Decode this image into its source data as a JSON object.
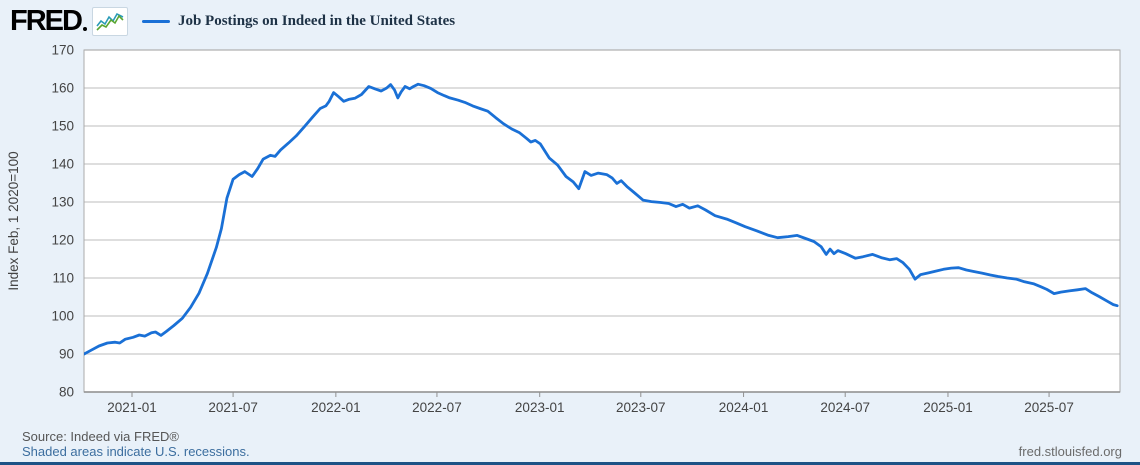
{
  "header": {
    "logo_text": "FRED",
    "legend_label": "Job Postings on Indeed in the United States"
  },
  "footer": {
    "source": "Source: Indeed via FRED®",
    "recessions_note": "Shaded areas indicate U.S. recessions.",
    "site": "fred.stlouisfed.org"
  },
  "colors": {
    "line": "#1a70d6",
    "page_bg": "#e9f1f9",
    "plot_bg": "#ffffff",
    "grid": "#c9c9c9",
    "border": "#ababab",
    "axis_bottom": "#909090",
    "tick_text": "#444444",
    "legend_text": "#1e3246",
    "link": "#3c6e9f",
    "bottom_bar": "#1c5286",
    "spark_teal": "#2a9bb7",
    "spark_green": "#5aa632"
  },
  "chart_data": {
    "type": "line",
    "title": "Job Postings on Indeed in the United States",
    "xlabel": "",
    "ylabel": "Index Feb, 1 2020=100",
    "ylim": [
      80,
      170
    ],
    "grid": true,
    "legend_position": "top-left",
    "y_ticks": [
      80,
      90,
      100,
      110,
      120,
      130,
      140,
      150,
      160,
      170
    ],
    "x_tick_labels": [
      "2021-01",
      "2021-07",
      "2022-01",
      "2022-07",
      "2023-01",
      "2023-07",
      "2024-01",
      "2024-07",
      "2025-01",
      "2025-07"
    ],
    "x_range": [
      "2020-10-06",
      "2025-11-05"
    ],
    "series": [
      {
        "name": "Job Postings on Indeed in the United States",
        "color": "#1a70d6",
        "points": [
          [
            "2020-10-06",
            89.9
          ],
          [
            "2020-10-20",
            91.0
          ],
          [
            "2020-11-03",
            92.1
          ],
          [
            "2020-11-18",
            92.9
          ],
          [
            "2020-12-02",
            93.1
          ],
          [
            "2020-12-10",
            92.9
          ],
          [
            "2020-12-20",
            93.9
          ],
          [
            "2021-01-03",
            94.4
          ],
          [
            "2021-01-14",
            95.0
          ],
          [
            "2021-01-24",
            94.7
          ],
          [
            "2021-02-05",
            95.6
          ],
          [
            "2021-02-12",
            95.8
          ],
          [
            "2021-02-22",
            94.9
          ],
          [
            "2021-03-03",
            95.9
          ],
          [
            "2021-03-17",
            97.5
          ],
          [
            "2021-04-01",
            99.4
          ],
          [
            "2021-04-16",
            102.3
          ],
          [
            "2021-05-01",
            106.0
          ],
          [
            "2021-05-16",
            111.2
          ],
          [
            "2021-06-01",
            118.0
          ],
          [
            "2021-06-10",
            123.0
          ],
          [
            "2021-06-20",
            131.0
          ],
          [
            "2021-07-01",
            136.0
          ],
          [
            "2021-07-12",
            137.2
          ],
          [
            "2021-07-22",
            138.0
          ],
          [
            "2021-08-04",
            136.7
          ],
          [
            "2021-08-14",
            138.8
          ],
          [
            "2021-08-24",
            141.3
          ],
          [
            "2021-09-06",
            142.3
          ],
          [
            "2021-09-14",
            142.0
          ],
          [
            "2021-09-24",
            143.7
          ],
          [
            "2021-10-08",
            145.5
          ],
          [
            "2021-10-22",
            147.4
          ],
          [
            "2021-11-06",
            149.9
          ],
          [
            "2021-11-20",
            152.3
          ],
          [
            "2021-12-04",
            154.6
          ],
          [
            "2021-12-14",
            155.3
          ],
          [
            "2021-12-20",
            156.5
          ],
          [
            "2021-12-28",
            158.8
          ],
          [
            "2022-01-06",
            157.7
          ],
          [
            "2022-01-15",
            156.5
          ],
          [
            "2022-01-24",
            157.0
          ],
          [
            "2022-02-04",
            157.3
          ],
          [
            "2022-02-16",
            158.3
          ],
          [
            "2022-03-01",
            160.4
          ],
          [
            "2022-03-13",
            159.7
          ],
          [
            "2022-03-23",
            159.2
          ],
          [
            "2022-04-02",
            160.0
          ],
          [
            "2022-04-09",
            160.9
          ],
          [
            "2022-04-16",
            159.5
          ],
          [
            "2022-04-22",
            157.4
          ],
          [
            "2022-04-28",
            159.0
          ],
          [
            "2022-05-05",
            160.4
          ],
          [
            "2022-05-13",
            159.8
          ],
          [
            "2022-05-20",
            160.4
          ],
          [
            "2022-05-28",
            161.0
          ],
          [
            "2022-06-08",
            160.6
          ],
          [
            "2022-06-20",
            159.9
          ],
          [
            "2022-07-02",
            158.8
          ],
          [
            "2022-07-14",
            158.0
          ],
          [
            "2022-07-24",
            157.4
          ],
          [
            "2022-08-08",
            156.8
          ],
          [
            "2022-08-20",
            156.2
          ],
          [
            "2022-09-03",
            155.3
          ],
          [
            "2022-09-16",
            154.6
          ],
          [
            "2022-09-30",
            153.9
          ],
          [
            "2022-10-14",
            152.2
          ],
          [
            "2022-10-28",
            150.6
          ],
          [
            "2022-11-12",
            149.2
          ],
          [
            "2022-11-26",
            148.2
          ],
          [
            "2022-12-08",
            146.8
          ],
          [
            "2022-12-16",
            145.8
          ],
          [
            "2022-12-24",
            146.2
          ],
          [
            "2023-01-02",
            145.3
          ],
          [
            "2023-01-18",
            141.6
          ],
          [
            "2023-02-02",
            139.7
          ],
          [
            "2023-02-17",
            136.7
          ],
          [
            "2023-03-02",
            135.3
          ],
          [
            "2023-03-12",
            133.5
          ],
          [
            "2023-03-23",
            138.0
          ],
          [
            "2023-04-03",
            137.0
          ],
          [
            "2023-04-16",
            137.6
          ],
          [
            "2023-05-01",
            137.2
          ],
          [
            "2023-05-11",
            136.3
          ],
          [
            "2023-05-19",
            134.9
          ],
          [
            "2023-05-27",
            135.6
          ],
          [
            "2023-06-06",
            134.1
          ],
          [
            "2023-06-19",
            132.5
          ],
          [
            "2023-07-05",
            130.5
          ],
          [
            "2023-07-20",
            130.1
          ],
          [
            "2023-08-04",
            129.9
          ],
          [
            "2023-08-20",
            129.6
          ],
          [
            "2023-09-02",
            128.8
          ],
          [
            "2023-09-14",
            129.4
          ],
          [
            "2023-09-26",
            128.4
          ],
          [
            "2023-10-11",
            129.0
          ],
          [
            "2023-10-25",
            127.9
          ],
          [
            "2023-11-11",
            126.4
          ],
          [
            "2023-12-02",
            125.5
          ],
          [
            "2023-12-19",
            124.5
          ],
          [
            "2024-01-04",
            123.5
          ],
          [
            "2024-01-25",
            122.4
          ],
          [
            "2024-02-15",
            121.2
          ],
          [
            "2024-03-02",
            120.6
          ],
          [
            "2024-03-21",
            120.9
          ],
          [
            "2024-04-06",
            121.2
          ],
          [
            "2024-04-21",
            120.4
          ],
          [
            "2024-05-06",
            119.6
          ],
          [
            "2024-05-19",
            118.2
          ],
          [
            "2024-05-28",
            116.2
          ],
          [
            "2024-06-04",
            117.6
          ],
          [
            "2024-06-11",
            116.4
          ],
          [
            "2024-06-18",
            117.2
          ],
          [
            "2024-07-02",
            116.4
          ],
          [
            "2024-07-19",
            115.2
          ],
          [
            "2024-08-02",
            115.6
          ],
          [
            "2024-08-19",
            116.2
          ],
          [
            "2024-09-05",
            115.3
          ],
          [
            "2024-09-19",
            114.8
          ],
          [
            "2024-10-01",
            115.1
          ],
          [
            "2024-10-12",
            114.1
          ],
          [
            "2024-10-24",
            112.3
          ],
          [
            "2024-11-03",
            109.7
          ],
          [
            "2024-11-13",
            110.9
          ],
          [
            "2024-11-28",
            111.4
          ],
          [
            "2024-12-13",
            111.9
          ],
          [
            "2024-12-24",
            112.3
          ],
          [
            "2025-01-07",
            112.6
          ],
          [
            "2025-01-20",
            112.7
          ],
          [
            "2025-02-03",
            112.1
          ],
          [
            "2025-02-16",
            111.7
          ],
          [
            "2025-03-03",
            111.3
          ],
          [
            "2025-03-18",
            110.8
          ],
          [
            "2025-04-01",
            110.4
          ],
          [
            "2025-04-17",
            110.0
          ],
          [
            "2025-05-03",
            109.7
          ],
          [
            "2025-05-18",
            109.0
          ],
          [
            "2025-06-03",
            108.5
          ],
          [
            "2025-06-16",
            107.7
          ],
          [
            "2025-06-27",
            107.0
          ],
          [
            "2025-07-10",
            105.9
          ],
          [
            "2025-07-22",
            106.3
          ],
          [
            "2025-08-06",
            106.6
          ],
          [
            "2025-08-21",
            106.9
          ],
          [
            "2025-09-04",
            107.2
          ],
          [
            "2025-09-16",
            106.1
          ],
          [
            "2025-09-29",
            105.1
          ],
          [
            "2025-10-12",
            104.0
          ],
          [
            "2025-10-24",
            103.0
          ],
          [
            "2025-10-31",
            102.7
          ]
        ]
      }
    ]
  }
}
